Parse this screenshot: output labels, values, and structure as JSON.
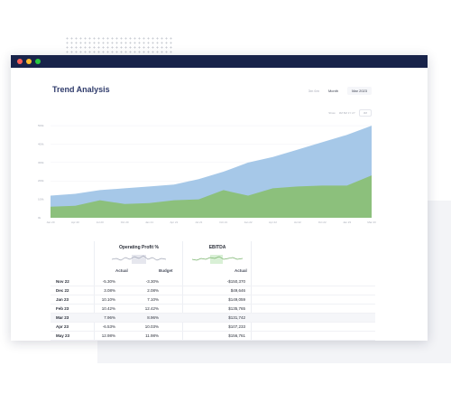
{
  "page": {
    "title": "Trend Analysis"
  },
  "controls": {
    "first": "3m  6m",
    "granularity": "Month",
    "period_date": "Mar 2023"
  },
  "chart_tools": {
    "label": "Show",
    "options": "3M  6M  1Y  2Y",
    "select": "3M"
  },
  "colors": {
    "titlebar": "#18234a",
    "area_top": "#a6c8e8",
    "area_bottom": "#8cc07c"
  },
  "chart_data": {
    "type": "area",
    "x": [
      "Jan 20",
      "Apr 20",
      "Jul 20",
      "Oct 20",
      "Jan 21",
      "Apr 21",
      "Jul 21",
      "Oct 21",
      "Jan 22",
      "Apr 22",
      "Jul 22",
      "Oct 22",
      "Jan 23",
      "Mar 23"
    ],
    "y_ticks": [
      "0k",
      "100k",
      "200k",
      "300k",
      "400k",
      "500k"
    ],
    "series": [
      {
        "name": "",
        "values": [
          120,
          130,
          150,
          160,
          170,
          180,
          210,
          250,
          300,
          330,
          370,
          410,
          450,
          500
        ]
      },
      {
        "name": "",
        "values": [
          60,
          65,
          95,
          75,
          80,
          95,
          100,
          150,
          120,
          160,
          170,
          175,
          175,
          230
        ]
      }
    ],
    "ylim": [
      0,
      520
    ]
  },
  "table": {
    "groups": [
      {
        "title": "Operating Profit %",
        "sub": [
          "Actual",
          "Budget"
        ]
      },
      {
        "title": "EBITDA",
        "sub": [
          "Actual"
        ]
      }
    ],
    "rows": [
      {
        "label": "Nov 22",
        "op_actual": "-5.30%",
        "op_budget": "-3.30%",
        "ebitda": "-$150,370"
      },
      {
        "label": "Dec 22",
        "op_actual": "3.08%",
        "op_budget": "2.08%",
        "ebitda": "$49,646"
      },
      {
        "label": "Jan 23",
        "op_actual": "10.10%",
        "op_budget": "7.10%",
        "ebitda": "$149,059"
      },
      {
        "label": "Feb 23",
        "op_actual": "10.42%",
        "op_budget": "12.42%",
        "ebitda": "$135,765"
      },
      {
        "label": "Mar 23",
        "op_actual": "7.96%",
        "op_budget": "8.96%",
        "ebitda": "$131,742"
      },
      {
        "label": "Apr 23",
        "op_actual": "-6.53%",
        "op_budget": "10.03%",
        "ebitda": "$107,233"
      },
      {
        "label": "May 23",
        "op_actual": "12.98%",
        "op_budget": "11.98%",
        "ebitda": "$156,761"
      }
    ]
  }
}
